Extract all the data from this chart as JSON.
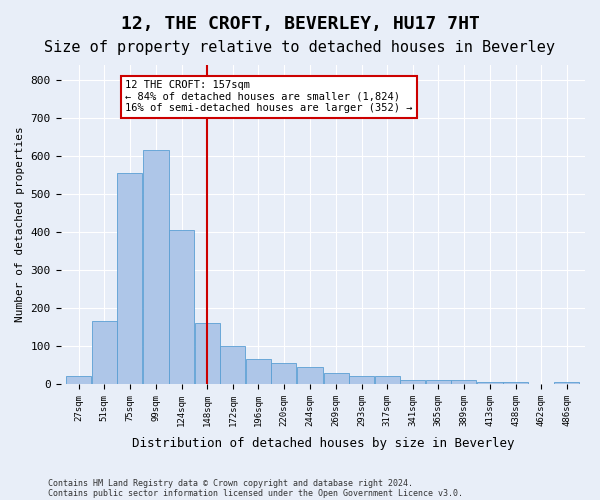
{
  "title": "12, THE CROFT, BEVERLEY, HU17 7HT",
  "subtitle": "Size of property relative to detached houses in Beverley",
  "xlabel": "Distribution of detached houses by size in Beverley",
  "ylabel": "Number of detached properties",
  "footer_line1": "Contains HM Land Registry data © Crown copyright and database right 2024.",
  "footer_line2": "Contains public sector information licensed under the Open Government Licence v3.0.",
  "annotation_line1": "12 THE CROFT: 157sqm",
  "annotation_line2": "← 84% of detached houses are smaller (1,824)",
  "annotation_line3": "16% of semi-detached houses are larger (352) →",
  "bar_edges": [
    27,
    51,
    75,
    99,
    124,
    148,
    172,
    196,
    220,
    244,
    269,
    293,
    317,
    341,
    365,
    389,
    413,
    438,
    462,
    486,
    510
  ],
  "bar_heights": [
    20,
    165,
    555,
    615,
    405,
    160,
    100,
    65,
    55,
    45,
    30,
    20,
    20,
    10,
    10,
    10,
    5,
    5,
    0,
    5
  ],
  "bar_color": "#aec6e8",
  "bar_edge_color": "#5a9fd4",
  "vline_color": "#cc0000",
  "vline_x": 160,
  "box_color": "#cc0000",
  "ylim": [
    0,
    840
  ],
  "yticks": [
    0,
    100,
    200,
    300,
    400,
    500,
    600,
    700,
    800
  ],
  "background_color": "#e8eef8",
  "plot_bg_color": "#e8eef8",
  "grid_color": "#ffffff",
  "title_fontsize": 13,
  "subtitle_fontsize": 11
}
